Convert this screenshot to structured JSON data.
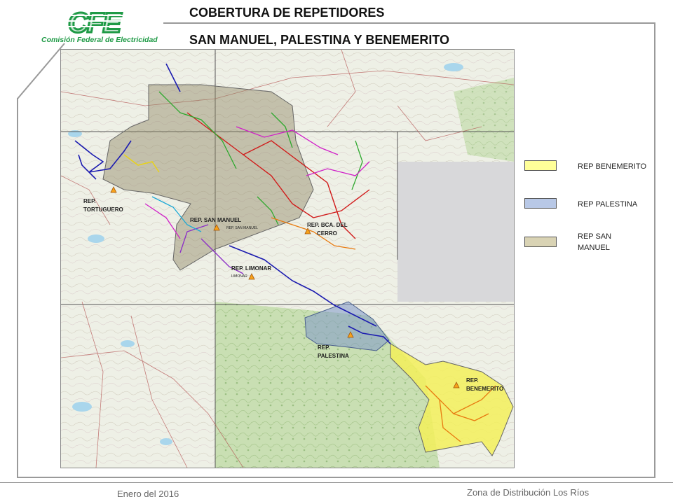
{
  "header": {
    "logo_text": "CFE",
    "logo_subtitle": "Comisión Federal de Electricidad",
    "title_line1": "COBERTURA DE REPETIDORES",
    "title_line2": "SAN MANUEL, PALESTINA Y BENEMERITO"
  },
  "map": {
    "repeaters": [
      {
        "label": "REP. TORTUGUERO",
        "lines": [
          "REP.",
          "TORTUGUERO"
        ]
      },
      {
        "label": "REP. SAN MANUEL",
        "lines": [
          "REP. SAN MANUEL"
        ],
        "sub": "REP. SAN MANUEL"
      },
      {
        "label": "REP. BCA. DEL CERRO",
        "lines": [
          "REP. BCA. DEL",
          "CERRO"
        ]
      },
      {
        "label": "REP. LIMONAR",
        "lines": [
          "REP. LIMONAR"
        ],
        "sub": "LIMONAR"
      },
      {
        "label": "REP. PALESTINA",
        "lines": [
          "REP.",
          "PALESTINA"
        ]
      },
      {
        "label": "REP. BENEMERITO",
        "lines": [
          "REP.",
          "BENEMERITO"
        ]
      }
    ]
  },
  "legend": {
    "items": [
      {
        "label": "REP BENEMERITO",
        "color": "#ffff99"
      },
      {
        "label": "REP PALESTINA",
        "color": "#b8c8e6"
      },
      {
        "label": "REP SAN MANUEL",
        "color": "#d9d3b4"
      }
    ]
  },
  "footer": {
    "date": "Enero del 2016",
    "zone": "Zona de Distribución Los Ríos"
  },
  "colors": {
    "brand_green": "#1f9a46",
    "palestina_fill": "#7d98c8",
    "san_manuel_fill": "#8f8563",
    "benemerito_fill": "#f3f05a"
  }
}
